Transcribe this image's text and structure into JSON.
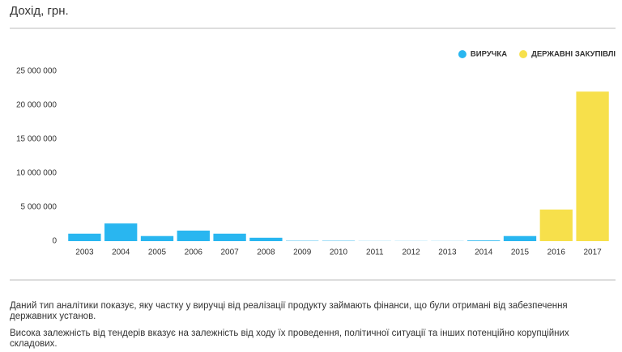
{
  "chart_data": {
    "type": "bar",
    "title": "Дохід, грн.",
    "categories": [
      "2003",
      "2004",
      "2005",
      "2006",
      "2007",
      "2008",
      "2009",
      "2010",
      "2011",
      "2012",
      "2013",
      "2014",
      "2015",
      "2016",
      "2017"
    ],
    "series": [
      {
        "name": "ВИРУЧКА",
        "color": "#29b6f0",
        "values": [
          1100000,
          2600000,
          750000,
          1550000,
          1100000,
          500000,
          50000,
          50000,
          20000,
          20000,
          20000,
          100000,
          750000,
          null,
          null
        ]
      },
      {
        "name": "ДЕРЖАВНІ ЗАКУПІВЛІ",
        "color": "#f7e04b",
        "values": [
          null,
          null,
          null,
          null,
          null,
          null,
          null,
          null,
          null,
          null,
          null,
          null,
          null,
          4650000,
          22000000
        ]
      }
    ],
    "ylim": [
      0,
      25000000
    ],
    "yticks": [
      0,
      {
        "value": 5000000,
        "label": "5 000 000"
      },
      {
        "value": 10000000,
        "label": "10 000 000"
      },
      {
        "value": 15000000,
        "label": "15 000 000"
      },
      {
        "value": 20000000,
        "label": "20 000 000"
      },
      {
        "value": 25000000,
        "label": "25 000 000"
      }
    ],
    "legend": "top-right"
  },
  "description": [
    "Даний тип аналітики показує, яку частку у виручці від реалізації продукту займають фінанси, що були отримані від забезпечення державних установ.",
    "Висока залежність від тендерів вказує на залежність від ходу їх проведення, політичної ситуації та інших потенційно корупційних складових."
  ]
}
